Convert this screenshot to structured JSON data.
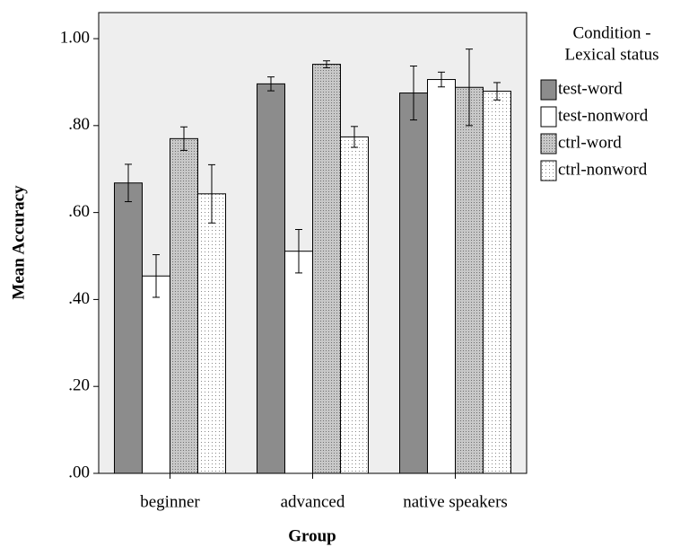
{
  "chart_data": {
    "type": "bar",
    "x_label": "Group",
    "y_label": "Mean Accuracy",
    "legend_title": [
      "Condition -",
      "Lexical status"
    ],
    "legend": "right",
    "categories": [
      "beginner",
      "advanced",
      "native speakers"
    ],
    "series": [
      {
        "name": "test-word",
        "color": "#8c8c8c",
        "pattern": null,
        "values": [
          0.668,
          0.896,
          0.875
        ],
        "errors": [
          0.043,
          0.016,
          0.062
        ]
      },
      {
        "name": "test-nonword",
        "color": "#ffffff",
        "pattern": null,
        "values": [
          0.454,
          0.511,
          0.906
        ],
        "errors": [
          0.049,
          0.05,
          0.017
        ]
      },
      {
        "name": "ctrl-word",
        "color": "#c8c8c8",
        "pattern": "dots",
        "values": [
          0.77,
          0.941,
          0.888
        ],
        "errors": [
          0.027,
          0.008,
          0.088
        ]
      },
      {
        "name": "ctrl-nonword",
        "color": "#ffffff",
        "pattern": "dots",
        "values": [
          0.643,
          0.774,
          0.879
        ],
        "errors": [
          0.067,
          0.024,
          0.02
        ]
      }
    ],
    "ylim": [
      0,
      1.06
    ],
    "yticks": [
      {
        "value": 0,
        "label": ".00"
      },
      {
        "value": 0.2,
        "label": ".20"
      },
      {
        "value": 0.4,
        "label": ".40"
      },
      {
        "value": 0.6,
        "label": ".60"
      },
      {
        "value": 0.8,
        "label": ".80"
      },
      {
        "value": 1,
        "label": "1.00"
      }
    ],
    "grid": false
  }
}
